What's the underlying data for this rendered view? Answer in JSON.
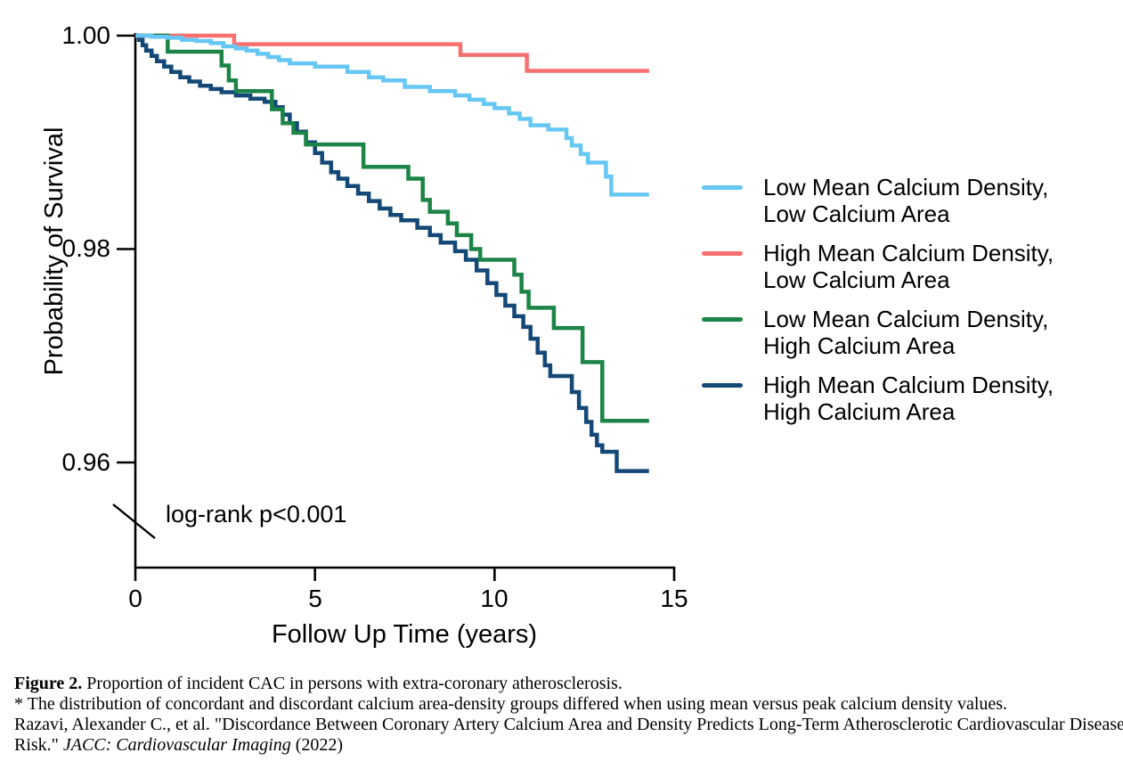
{
  "chart_data": {
    "type": "line",
    "subtype": "kaplan-meier-step-survival",
    "title": "",
    "xlabel": "Follow Up Time (years)",
    "ylabel": "Probability of Survival",
    "xlim": [
      0,
      15
    ],
    "xticks": [
      0,
      5,
      10,
      15
    ],
    "xtick_labels": [
      "0",
      "5",
      "10",
      "15"
    ],
    "yticks": [
      1.0,
      0.98,
      0.96
    ],
    "ytick_labels": [
      "1.00",
      "0.98",
      "0.96"
    ],
    "y_axis_break_below": 0.96,
    "grid": false,
    "legend_position": "right",
    "annotation": "log-rank p<0.001",
    "series": [
      {
        "id": "low-density-low-area",
        "name": "Low Mean Calcium Density, Low Calcium Area",
        "label_line1": "Low Mean Calcium Density,",
        "label_line2": "Low Calcium Area",
        "color": "#66C7F4",
        "points": [
          [
            0,
            1.0
          ],
          [
            0.45,
            0.9999
          ],
          [
            0.9,
            0.9998
          ],
          [
            1.3,
            0.9996
          ],
          [
            1.7,
            0.9995
          ],
          [
            2.1,
            0.9993
          ],
          [
            2.45,
            0.999
          ],
          [
            2.8,
            0.9988
          ],
          [
            3.1,
            0.9986
          ],
          [
            3.4,
            0.9983
          ],
          [
            3.7,
            0.998
          ],
          [
            4.0,
            0.9977
          ],
          [
            4.3,
            0.9974
          ],
          [
            5.0,
            0.9971
          ],
          [
            5.9,
            0.9966
          ],
          [
            6.5,
            0.9961
          ],
          [
            6.9,
            0.9958
          ],
          [
            7.5,
            0.9952
          ],
          [
            8.2,
            0.9948
          ],
          [
            8.9,
            0.9944
          ],
          [
            9.3,
            0.994
          ],
          [
            9.7,
            0.9936
          ],
          [
            10.0,
            0.9932
          ],
          [
            10.4,
            0.9927
          ],
          [
            10.7,
            0.9922
          ],
          [
            11.0,
            0.9916
          ],
          [
            11.5,
            0.9912
          ],
          [
            12.0,
            0.9904
          ],
          [
            12.15,
            0.9897
          ],
          [
            12.4,
            0.9889
          ],
          [
            12.6,
            0.9881
          ],
          [
            13.1,
            0.9868
          ],
          [
            13.25,
            0.9851
          ],
          [
            14.3,
            0.9851
          ]
        ]
      },
      {
        "id": "high-density-low-area",
        "name": "High Mean Calcium Density, Low Calcium Area",
        "label_line1": "High Mean Calcium Density,",
        "label_line2": "Low Calcium Area",
        "color": "#F7706E",
        "points": [
          [
            0,
            1.0
          ],
          [
            2.75,
            0.9992
          ],
          [
            9.05,
            0.9982
          ],
          [
            10.9,
            0.9967
          ],
          [
            14.3,
            0.9967
          ]
        ]
      },
      {
        "id": "low-density-high-area",
        "name": "Low Mean Calcium Density, High Calcium Area",
        "label_line1": "Low Mean Calcium Density,",
        "label_line2": "High Calcium Area",
        "color": "#1B8446",
        "points": [
          [
            0,
            1.0
          ],
          [
            0.9,
            0.9985
          ],
          [
            2.4,
            0.9972
          ],
          [
            2.6,
            0.9958
          ],
          [
            2.8,
            0.9948
          ],
          [
            3.8,
            0.9931
          ],
          [
            4.1,
            0.9918
          ],
          [
            4.4,
            0.9909
          ],
          [
            4.75,
            0.9898
          ],
          [
            6.35,
            0.9877
          ],
          [
            7.6,
            0.9866
          ],
          [
            8.0,
            0.9846
          ],
          [
            8.2,
            0.9835
          ],
          [
            8.7,
            0.9824
          ],
          [
            8.95,
            0.9813
          ],
          [
            9.35,
            0.98
          ],
          [
            9.6,
            0.979
          ],
          [
            10.55,
            0.9776
          ],
          [
            10.75,
            0.976
          ],
          [
            10.95,
            0.9745
          ],
          [
            11.65,
            0.9726
          ],
          [
            12.45,
            0.9694
          ],
          [
            13.0,
            0.9639
          ],
          [
            14.3,
            0.9639
          ]
        ]
      },
      {
        "id": "high-density-high-area",
        "name": "High Mean Calcium Density, High Calcium Area",
        "label_line1": "High Mean Calcium Density,",
        "label_line2": "High Calcium Area",
        "color": "#134877",
        "points": [
          [
            0,
            1.0
          ],
          [
            0.1,
            0.9996
          ],
          [
            0.2,
            0.9991
          ],
          [
            0.3,
            0.9986
          ],
          [
            0.45,
            0.9981
          ],
          [
            0.6,
            0.9976
          ],
          [
            0.8,
            0.9971
          ],
          [
            1.0,
            0.9966
          ],
          [
            1.25,
            0.9961
          ],
          [
            1.5,
            0.9957
          ],
          [
            1.8,
            0.9953
          ],
          [
            2.1,
            0.995
          ],
          [
            2.4,
            0.9947
          ],
          [
            2.8,
            0.9944
          ],
          [
            3.2,
            0.9941
          ],
          [
            3.6,
            0.9938
          ],
          [
            3.9,
            0.9933
          ],
          [
            4.1,
            0.9926
          ],
          [
            4.3,
            0.9918
          ],
          [
            4.5,
            0.991
          ],
          [
            4.75,
            0.99
          ],
          [
            5.0,
            0.989
          ],
          [
            5.2,
            0.9881
          ],
          [
            5.45,
            0.9872
          ],
          [
            5.65,
            0.9866
          ],
          [
            5.9,
            0.9859
          ],
          [
            6.2,
            0.9852
          ],
          [
            6.5,
            0.9845
          ],
          [
            6.8,
            0.9838
          ],
          [
            7.1,
            0.9832
          ],
          [
            7.4,
            0.9827
          ],
          [
            7.85,
            0.982
          ],
          [
            8.2,
            0.9813
          ],
          [
            8.5,
            0.9806
          ],
          [
            8.9,
            0.9798
          ],
          [
            9.2,
            0.979
          ],
          [
            9.5,
            0.978
          ],
          [
            9.8,
            0.9768
          ],
          [
            10.05,
            0.9757
          ],
          [
            10.3,
            0.9747
          ],
          [
            10.55,
            0.9737
          ],
          [
            10.8,
            0.9727
          ],
          [
            11.0,
            0.9716
          ],
          [
            11.2,
            0.9703
          ],
          [
            11.4,
            0.9691
          ],
          [
            11.55,
            0.9681
          ],
          [
            12.15,
            0.9666
          ],
          [
            12.35,
            0.9651
          ],
          [
            12.55,
            0.9638
          ],
          [
            12.7,
            0.9626
          ],
          [
            12.85,
            0.9616
          ],
          [
            13.0,
            0.961
          ],
          [
            13.4,
            0.9592
          ],
          [
            14.3,
            0.9592
          ]
        ]
      }
    ]
  },
  "caption": {
    "figure_label": "Figure 2.",
    "figure_text": " Proportion of incident CAC in persons with extra-coronary atherosclerosis.",
    "note": "* The distribution of concordant and discordant calcium area-density groups differed when using mean versus peak calcium density values.",
    "citation_line1": "Razavi, Alexander C., et al. \"Discordance Between Coronary Artery Calcium Area and Density Predicts Long-Term Atherosclerotic Cardiovascular Disease",
    "citation_line2_prefix": "Risk.\" ",
    "citation_line2_italic": "JACC: Cardiovascular Imaging",
    "citation_line2_suffix": " (2022)"
  }
}
